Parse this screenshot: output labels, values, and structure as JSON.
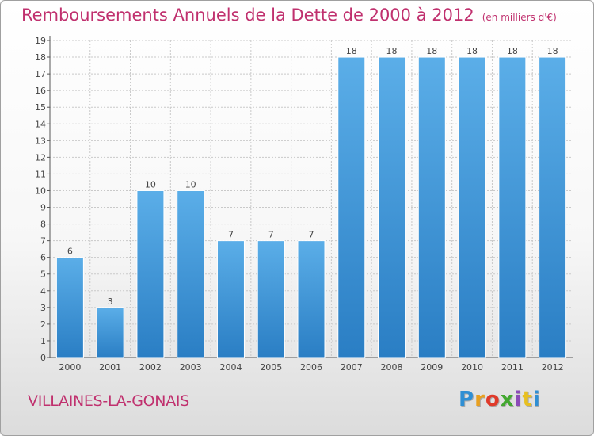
{
  "title": "Remboursements Annuels de la Dette de 2000 à 2012",
  "title_unit": "(en milliers d'€)",
  "commune": "VILLAINES-LA-GONAIS",
  "logo_text": [
    "P",
    "r",
    "o",
    "x",
    "i",
    "t",
    "i"
  ],
  "colors": {
    "title": "#c0306e",
    "bar_light": "#5baee8",
    "bar_dark": "#2a7ec4",
    "grid": "#c9c9c9"
  },
  "chart_data": {
    "type": "bar",
    "categories": [
      "2000",
      "2001",
      "2002",
      "2003",
      "2004",
      "2005",
      "2006",
      "2007",
      "2008",
      "2009",
      "2010",
      "2011",
      "2012"
    ],
    "values": [
      6,
      3,
      10,
      10,
      7,
      7,
      7,
      18,
      18,
      18,
      18,
      18,
      18
    ],
    "data_labels": [
      "6",
      "3",
      "10",
      "10",
      "7",
      "7",
      "7",
      "18",
      "18",
      "18",
      "18",
      "18",
      "18"
    ],
    "yticks": [
      "0",
      "1",
      "2",
      "3",
      "4",
      "5",
      "6",
      "7",
      "8",
      "9",
      "10",
      "11",
      "12",
      "13",
      "14",
      "15",
      "16",
      "17",
      "18",
      "19"
    ],
    "ylim": [
      0,
      19
    ],
    "grid": true
  }
}
